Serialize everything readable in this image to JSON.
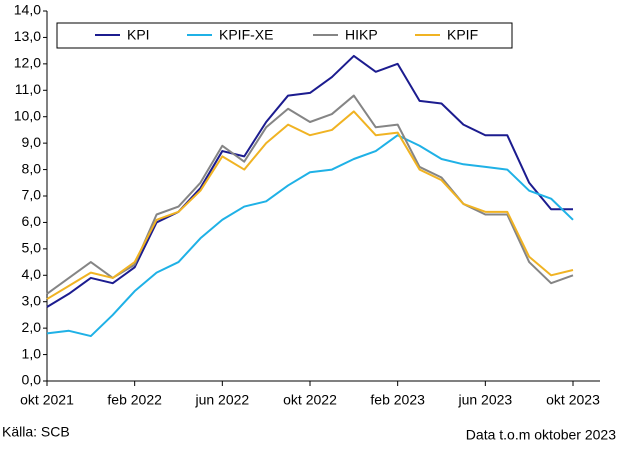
{
  "chart_data": {
    "type": "line",
    "categories": [
      "okt 2021",
      null,
      null,
      null,
      "feb 2022",
      null,
      null,
      null,
      "jun 2022",
      null,
      null,
      null,
      "okt 2022",
      null,
      null,
      null,
      "feb 2023",
      null,
      null,
      null,
      "jun 2023",
      null,
      null,
      null,
      "okt 2023"
    ],
    "series": [
      {
        "name": "KPI",
        "color": "#1c1c8f",
        "values": [
          2.8,
          3.3,
          3.9,
          3.7,
          4.3,
          6.0,
          6.4,
          7.3,
          8.7,
          8.5,
          9.8,
          10.8,
          10.9,
          11.5,
          12.3,
          11.7,
          12.0,
          10.6,
          10.5,
          9.7,
          9.3,
          9.3,
          7.5,
          6.5,
          6.5
        ]
      },
      {
        "name": "KPIF-XE",
        "color": "#1fb1e6",
        "values": [
          1.8,
          1.9,
          1.7,
          2.5,
          3.4,
          4.1,
          4.5,
          5.4,
          6.1,
          6.6,
          6.8,
          7.4,
          7.9,
          8.0,
          8.4,
          8.7,
          9.3,
          8.9,
          8.4,
          8.2,
          8.1,
          8.0,
          7.2,
          6.9,
          6.1
        ]
      },
      {
        "name": "HIKP",
        "color": "#858585",
        "values": [
          3.3,
          3.9,
          4.5,
          3.9,
          4.4,
          6.3,
          6.6,
          7.5,
          8.9,
          8.3,
          9.6,
          10.3,
          9.8,
          10.1,
          10.8,
          9.6,
          9.7,
          8.1,
          7.7,
          6.7,
          6.3,
          6.3,
          4.5,
          3.7,
          4.0
        ]
      },
      {
        "name": "KPIF",
        "color": "#f0b323",
        "values": [
          3.1,
          3.6,
          4.1,
          3.9,
          4.5,
          6.1,
          6.4,
          7.2,
          8.5,
          8.0,
          9.0,
          9.7,
          9.3,
          9.5,
          10.2,
          9.3,
          9.4,
          8.0,
          7.6,
          6.7,
          6.4,
          6.4,
          4.7,
          4.0,
          4.2
        ]
      }
    ],
    "ylim": [
      0,
      14
    ],
    "yticks": [
      {
        "value": 0,
        "label": "0,0"
      },
      {
        "value": 1,
        "label": "1,0"
      },
      {
        "value": 2,
        "label": "2,0"
      },
      {
        "value": 3,
        "label": "3,0"
      },
      {
        "value": 4,
        "label": "4,0"
      },
      {
        "value": 5,
        "label": "5,0"
      },
      {
        "value": 6,
        "label": "6,0"
      },
      {
        "value": 7,
        "label": "7,0"
      },
      {
        "value": 8,
        "label": "8,0"
      },
      {
        "value": 9,
        "label": "9,0"
      },
      {
        "value": 10,
        "label": "10,0"
      },
      {
        "value": 11,
        "label": "11,0"
      },
      {
        "value": 12,
        "label": "12,0"
      },
      {
        "value": 13,
        "label": "13,0"
      },
      {
        "value": 14,
        "label": "14,0"
      }
    ],
    "source": "Källa: SCB",
    "note": "Data t.o.m oktober 2023",
    "grid": false
  }
}
